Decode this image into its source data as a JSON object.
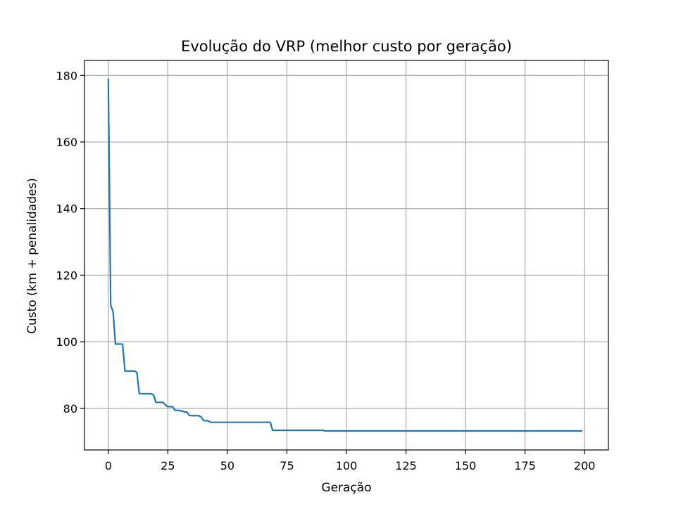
{
  "chart_data": {
    "type": "line",
    "title": "Evolução do VRP (melhor custo por geração)",
    "xlabel": "Geração",
    "ylabel": "Custo (km + penalidades)",
    "xlim": [
      -10,
      210
    ],
    "ylim": [
      67.5,
      184.5
    ],
    "xticks": [
      0,
      25,
      50,
      75,
      100,
      125,
      150,
      175,
      200
    ],
    "yticks": [
      80,
      100,
      120,
      140,
      160,
      180
    ],
    "grid": true,
    "series": [
      {
        "color": "#1f77b4",
        "x": [
          0,
          1,
          2,
          3,
          4,
          5,
          6,
          7,
          8,
          9,
          10,
          11,
          12,
          13,
          14,
          15,
          16,
          17,
          18,
          19,
          20,
          21,
          22,
          23,
          24,
          25,
          26,
          27,
          28,
          29,
          30,
          31,
          32,
          33,
          34,
          35,
          36,
          37,
          38,
          39,
          40,
          41,
          42,
          43,
          50,
          60,
          68,
          69,
          70,
          80,
          90,
          91,
          100,
          150,
          199
        ],
        "y": [
          179,
          111,
          109,
          99.3,
          99.3,
          99.3,
          99.3,
          91.2,
          91.2,
          91.2,
          91.2,
          91.2,
          90.8,
          84.4,
          84.4,
          84.4,
          84.4,
          84.4,
          84.4,
          84,
          81.8,
          81.8,
          81.8,
          81.8,
          81.0,
          80.5,
          80.5,
          80.5,
          79.4,
          79.4,
          79.3,
          79.2,
          78.9,
          78.9,
          77.9,
          77.8,
          77.8,
          77.8,
          77.8,
          77.4,
          76.3,
          76.3,
          76.2,
          75.8,
          75.8,
          75.8,
          75.8,
          73.4,
          73.4,
          73.4,
          73.4,
          73.2,
          73.2,
          73.2,
          73.2
        ]
      }
    ]
  }
}
